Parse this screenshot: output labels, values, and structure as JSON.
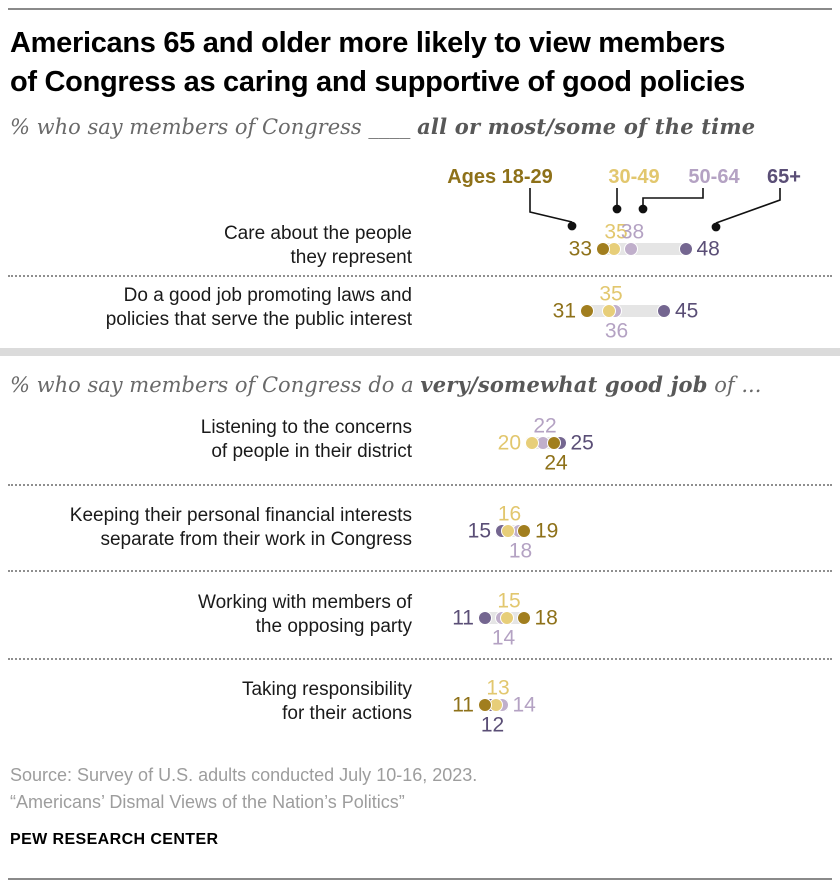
{
  "page": {
    "title_line1": "Americans 65 and older more likely to view members",
    "title_line2": "of Congress as caring and supportive of good policies",
    "subtitle1": {
      "plain": "% who say members of Congress",
      "blank": "____",
      "bold": "all or most/some of the time"
    },
    "subtitle2": {
      "plain": "% who say members of Congress do a ",
      "bold": "very/somewhat good job",
      "suffix": " of ..."
    },
    "source_line1": "Source: Survey of U.S. adults conducted July 10-16, 2023.",
    "source_line2": "“Americans’ Dismal Views of the Nation’s Politics”",
    "brand": "PEW RESEARCH CENTER"
  },
  "legend": {
    "items": [
      {
        "id": "age1829",
        "label": "Ages 18-29"
      },
      {
        "id": "age3049",
        "label": "30-49"
      },
      {
        "id": "age5064",
        "label": "50-64"
      },
      {
        "id": "age65",
        "label": "65+"
      }
    ]
  },
  "colors": {
    "age1829": {
      "dot": "#A17E1E",
      "text": "#8E7119"
    },
    "age3049": {
      "dot": "#E7CE79",
      "text": "#E2C76E"
    },
    "age5064": {
      "dot": "#C0AFCB",
      "text": "#B4A2C3"
    },
    "age65": {
      "dot": "#746690",
      "text": "#5A4E76"
    },
    "connector_bar": "#E5E5E5",
    "section_bar": "#DBDBDB",
    "rule": "#8A8A8A",
    "separator": "#8F8F8F",
    "subtitle_text": "#696969",
    "subtitle_bold_text": "#585858",
    "source_text": "#9D9D9D",
    "leader": "#111111"
  },
  "chart_data": {
    "type": "scatter",
    "title": "Americans 65 and older more likely to view members of Congress as caring and supportive of good policies",
    "subtitle_top": "% who say members of Congress ____ all or most/some of the time",
    "subtitle_bottom": "% who say members of Congress do a very/somewhat good job of ...",
    "legend_position": "top",
    "categories": [
      "Care about the people they represent",
      "Do a good job promoting laws and policies that serve the public interest",
      "Listening to the concerns of people in their district",
      "Keeping their personal financial interests separate from their work in Congress",
      "Working with members of the opposing party",
      "Taking responsibility for their actions"
    ],
    "category_lines": [
      [
        "Care about the people",
        "they represent"
      ],
      [
        "Do a good job promoting laws and",
        "policies that serve the public interest"
      ],
      [
        "Listening to the concerns",
        "of people in their district"
      ],
      [
        "Keeping their personal financial interests",
        "separate from their work in Congress"
      ],
      [
        "Working with members of",
        "the opposing party"
      ],
      [
        "Taking responsibility",
        "for their actions"
      ]
    ],
    "series": [
      {
        "id": "age1829",
        "name": "Ages 18-29",
        "values": [
          33,
          31,
          24,
          19,
          18,
          11
        ]
      },
      {
        "id": "age3049",
        "name": "30-49",
        "values": [
          35,
          35,
          20,
          16,
          15,
          13
        ]
      },
      {
        "id": "age5064",
        "name": "50-64",
        "values": [
          38,
          36,
          22,
          18,
          14,
          14
        ]
      },
      {
        "id": "age65",
        "name": "65+",
        "values": [
          48,
          45,
          25,
          15,
          11,
          12
        ]
      }
    ],
    "section_split": {
      "top_categories": [
        0,
        1
      ],
      "bottom_categories": [
        2,
        3,
        4,
        5
      ]
    },
    "units": "percent"
  }
}
